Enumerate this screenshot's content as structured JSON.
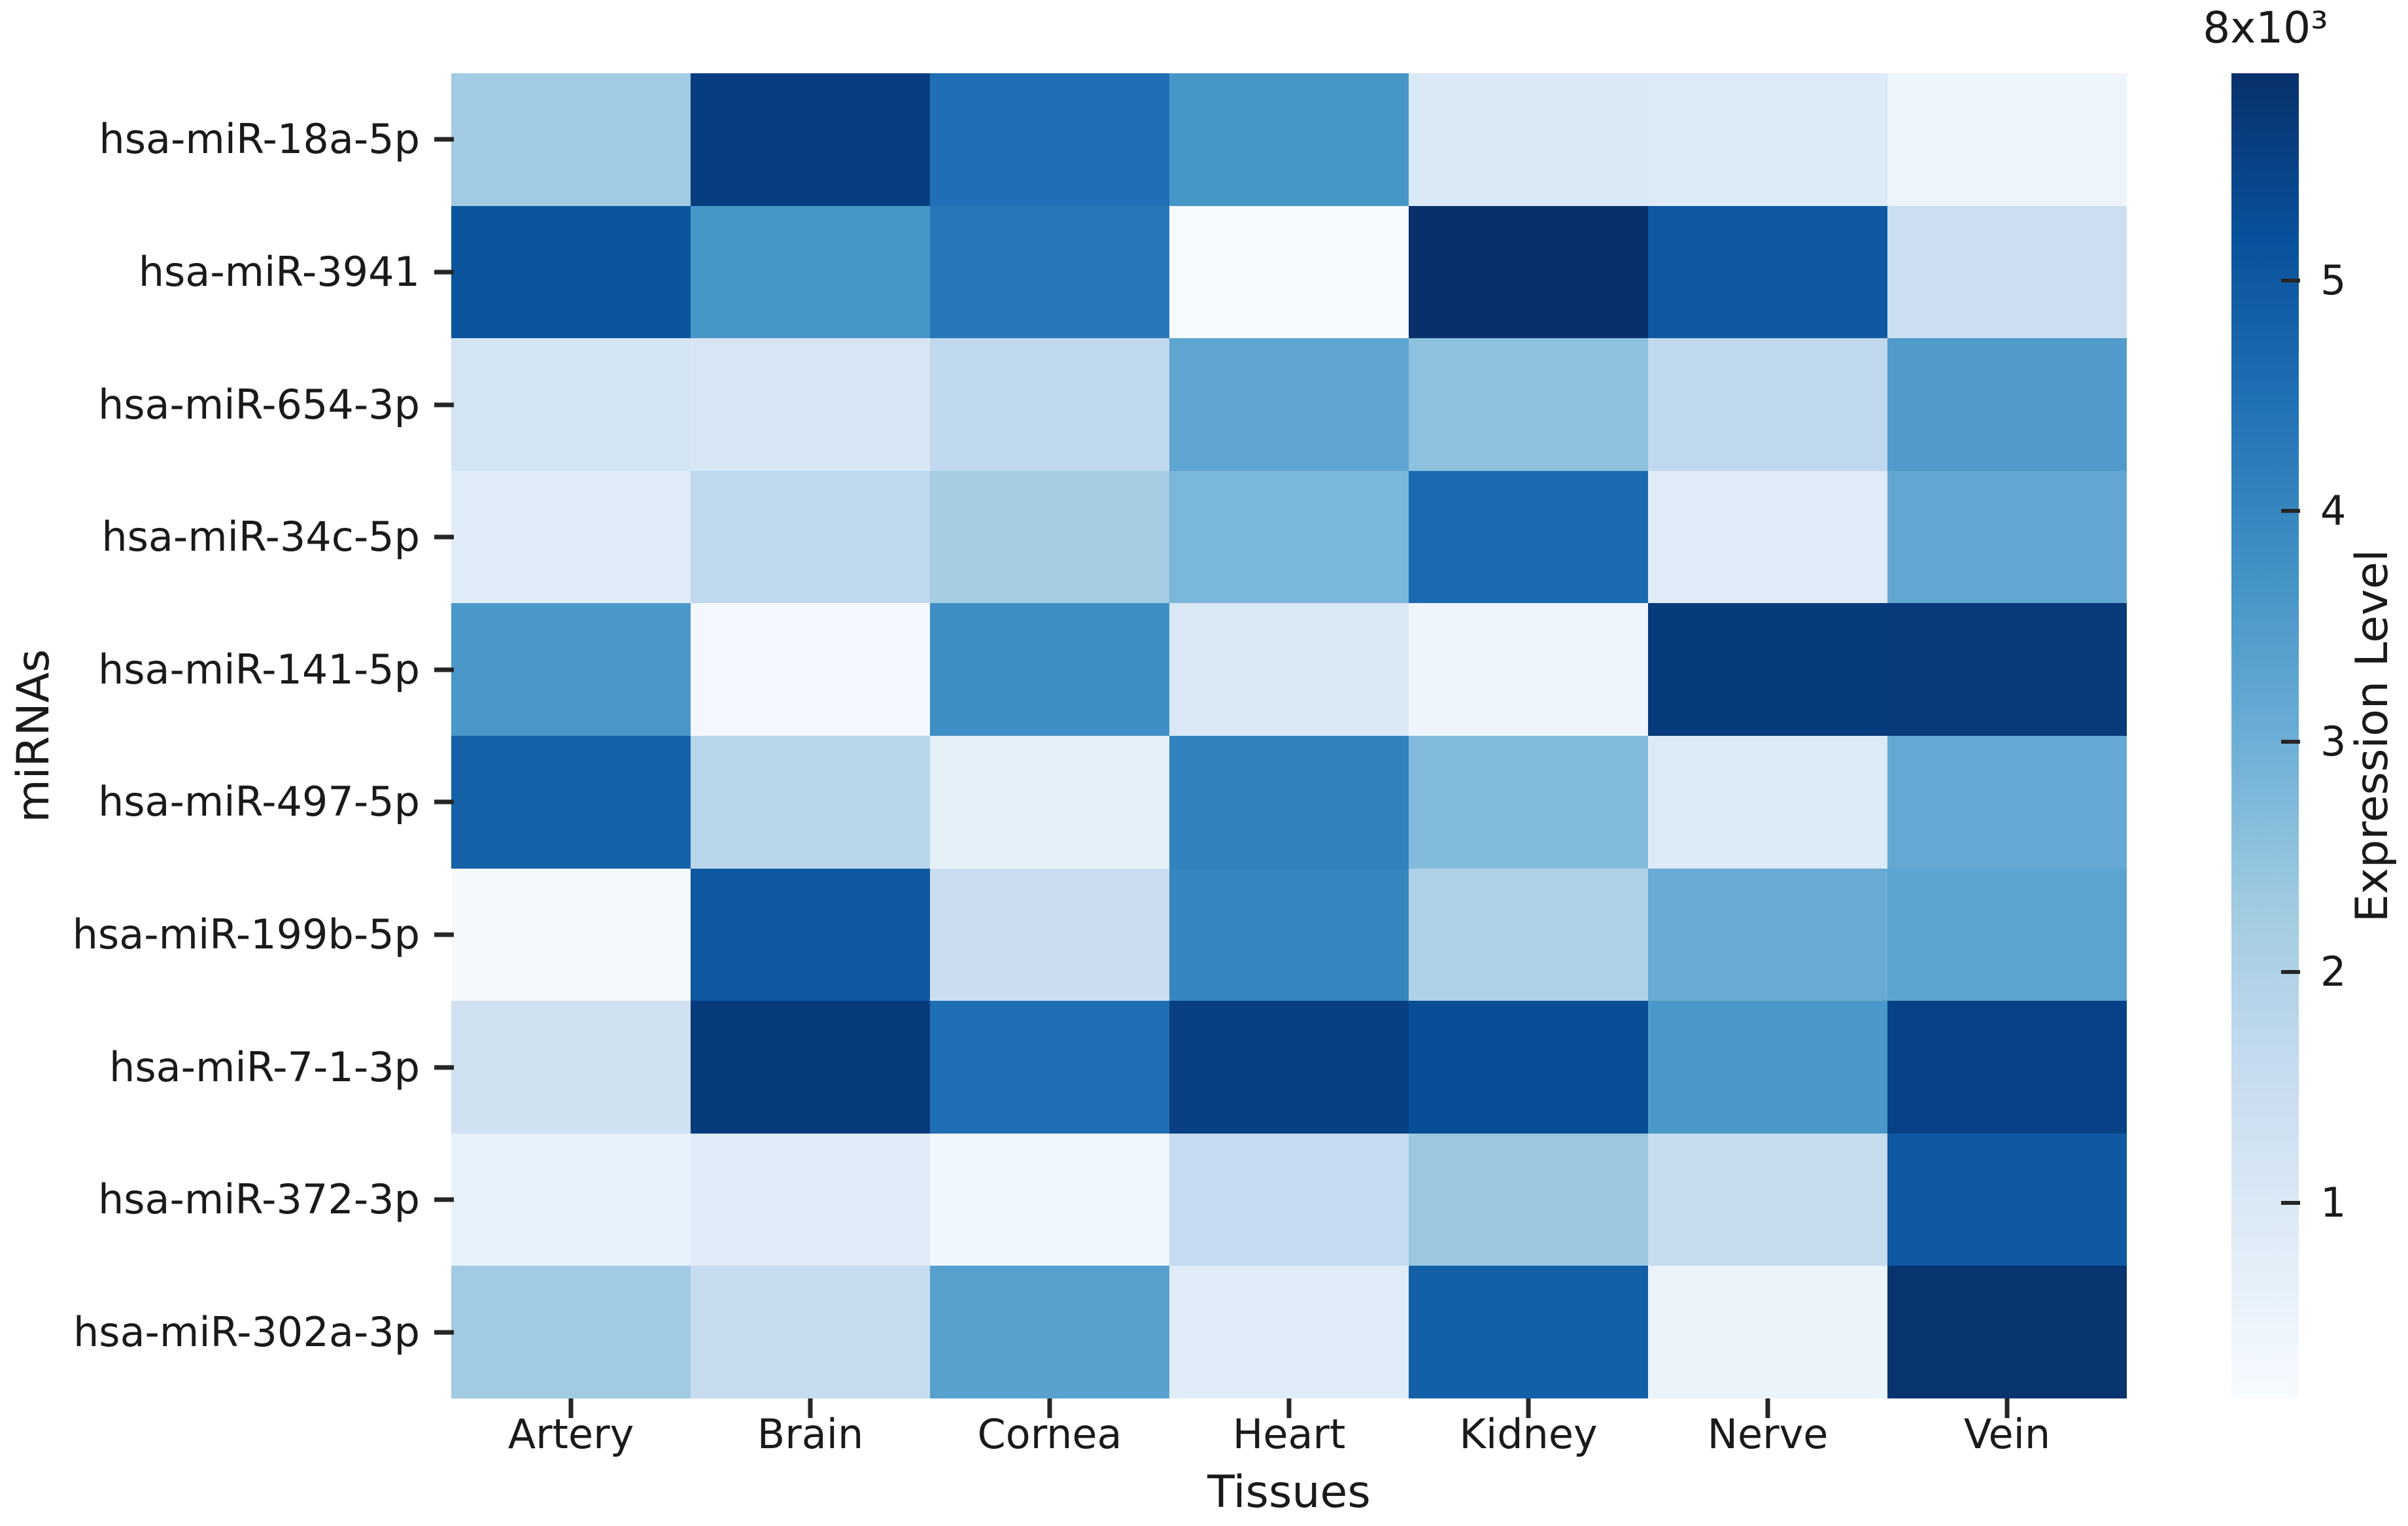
{
  "figure": {
    "background_color": "#ffffff",
    "text_color": "#1a1a1a",
    "tick_color": "#262626"
  },
  "chart_data": {
    "type": "heatmap",
    "title": "",
    "xlabel": "Tissues",
    "ylabel": "miRNAs",
    "categories_x": [
      "Artery",
      "Brain",
      "Cornea",
      "Heart",
      "Kidney",
      "Nerve",
      "Vein"
    ],
    "categories_y": [
      "hsa-miR-18a-5p",
      "hsa-miR-3941",
      "hsa-miR-654-3p",
      "hsa-miR-34c-5p",
      "hsa-miR-141-5p",
      "hsa-miR-497-5p",
      "hsa-miR-199b-5p",
      "hsa-miR-7-1-3p",
      "hsa-miR-372-3p",
      "hsa-miR-302a-3p"
    ],
    "values": [
      [
        2250,
        5600,
        4500,
        3650,
        950,
        900,
        450
      ],
      [
        5100,
        3650,
        4300,
        150,
        5900,
        5000,
        1400
      ],
      [
        1200,
        1100,
        1700,
        3250,
        2550,
        1700,
        3500
      ],
      [
        800,
        1700,
        2200,
        2800,
        4600,
        850,
        3200
      ],
      [
        3600,
        300,
        3800,
        950,
        400,
        5650,
        5700
      ],
      [
        4800,
        1800,
        650,
        4100,
        2700,
        900,
        3150
      ],
      [
        250,
        5000,
        1450,
        4000,
        2000,
        3100,
        3300
      ],
      [
        1300,
        5650,
        4500,
        5550,
        5250,
        3600,
        5500
      ],
      [
        600,
        850,
        350,
        1600,
        2350,
        1550,
        5000
      ],
      [
        2250,
        1550,
        3350,
        800,
        4850,
        500,
        5820
      ]
    ],
    "vmin": 150,
    "vmax": 5900,
    "colormap": "Blues",
    "colormap_stops": [
      "#f7fbff",
      "#deebf7",
      "#c6dbef",
      "#9ecae1",
      "#6baed6",
      "#4292c6",
      "#2171b5",
      "#08519c",
      "#08306b"
    ],
    "grid": false,
    "colorbar": {
      "position": "right",
      "label": "Expression Level",
      "top_label": "8x10³",
      "ticks": [
        1000,
        2000,
        3000,
        4000,
        5000
      ],
      "tick_labels": [
        "1",
        "2",
        "3",
        "4",
        "5"
      ]
    }
  }
}
